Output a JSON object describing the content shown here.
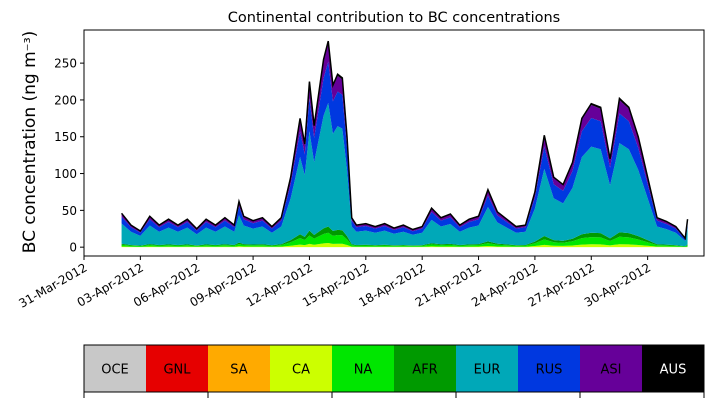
{
  "chart_data": {
    "type": "area",
    "stacked": true,
    "title": "Continental contribution to BC concentrations",
    "ylabel": "BC concentration (ng m⁻³)",
    "xlabel": "",
    "x_start": "2012-04-02",
    "x_end": "2012-05-02",
    "xlim": [
      "2012-03-31",
      "2012-05-03"
    ],
    "ylim": [
      -12,
      295
    ],
    "y_ticks": [
      0,
      50,
      100,
      150,
      200,
      250
    ],
    "x_ticks": [
      "31-Mar-2012",
      "03-Apr-2012",
      "06-Apr-2012",
      "09-Apr-2012",
      "12-Apr-2012",
      "15-Apr-2012",
      "18-Apr-2012",
      "21-Apr-2012",
      "24-Apr-2012",
      "27-Apr-2012",
      "30-Apr-2012"
    ],
    "total_series": {
      "name": "Total",
      "color": "#000000",
      "points": [
        [
          "2012-04-02T00",
          46
        ],
        [
          "2012-04-02T12",
          30
        ],
        [
          "2012-04-03T00",
          22
        ],
        [
          "2012-04-03T12",
          42
        ],
        [
          "2012-04-04T00",
          30
        ],
        [
          "2012-04-04T12",
          38
        ],
        [
          "2012-04-05T00",
          30
        ],
        [
          "2012-04-05T12",
          38
        ],
        [
          "2012-04-06T00",
          25
        ],
        [
          "2012-04-06T12",
          38
        ],
        [
          "2012-04-07T00",
          30
        ],
        [
          "2012-04-07T12",
          40
        ],
        [
          "2012-04-08T00",
          30
        ],
        [
          "2012-04-08T06",
          62
        ],
        [
          "2012-04-08T12",
          42
        ],
        [
          "2012-04-09T00",
          36
        ],
        [
          "2012-04-09T12",
          40
        ],
        [
          "2012-04-10T00",
          28
        ],
        [
          "2012-04-10T12",
          40
        ],
        [
          "2012-04-11T00",
          95
        ],
        [
          "2012-04-11T12",
          175
        ],
        [
          "2012-04-11T18",
          140
        ],
        [
          "2012-04-12T00",
          225
        ],
        [
          "2012-04-12T06",
          165
        ],
        [
          "2012-04-12T18",
          255
        ],
        [
          "2012-04-13T00",
          280
        ],
        [
          "2012-04-13T06",
          220
        ],
        [
          "2012-04-13T12",
          235
        ],
        [
          "2012-04-13T18",
          230
        ],
        [
          "2012-04-14T00",
          150
        ],
        [
          "2012-04-14T06",
          40
        ],
        [
          "2012-04-14T12",
          30
        ],
        [
          "2012-04-15T00",
          32
        ],
        [
          "2012-04-15T12",
          28
        ],
        [
          "2012-04-16T00",
          32
        ],
        [
          "2012-04-16T12",
          26
        ],
        [
          "2012-04-17T00",
          30
        ],
        [
          "2012-04-17T12",
          24
        ],
        [
          "2012-04-18T00",
          28
        ],
        [
          "2012-04-18T12",
          53
        ],
        [
          "2012-04-19T00",
          40
        ],
        [
          "2012-04-19T12",
          45
        ],
        [
          "2012-04-20T00",
          30
        ],
        [
          "2012-04-20T12",
          38
        ],
        [
          "2012-04-21T00",
          42
        ],
        [
          "2012-04-21T12",
          78
        ],
        [
          "2012-04-22T00",
          48
        ],
        [
          "2012-04-22T12",
          38
        ],
        [
          "2012-04-23T00",
          28
        ],
        [
          "2012-04-23T12",
          30
        ],
        [
          "2012-04-24T00",
          75
        ],
        [
          "2012-04-24T12",
          152
        ],
        [
          "2012-04-25T00",
          95
        ],
        [
          "2012-04-25T12",
          85
        ],
        [
          "2012-04-26T00",
          115
        ],
        [
          "2012-04-26T12",
          175
        ],
        [
          "2012-04-27T00",
          195
        ],
        [
          "2012-04-27T12",
          190
        ],
        [
          "2012-04-28T00",
          120
        ],
        [
          "2012-04-28T06",
          160
        ],
        [
          "2012-04-28T12",
          202
        ],
        [
          "2012-04-29T00",
          190
        ],
        [
          "2012-04-29T12",
          150
        ],
        [
          "2012-04-30T00",
          95
        ],
        [
          "2012-04-30T12",
          40
        ],
        [
          "2012-05-01T00",
          35
        ],
        [
          "2012-05-01T12",
          28
        ],
        [
          "2012-05-02T00",
          12
        ],
        [
          "2012-05-02T03",
          38
        ]
      ]
    },
    "series": [
      {
        "name": "OCE",
        "color": "#c8c8c8",
        "share": 0.0
      },
      {
        "name": "GNL",
        "color": "#e60000",
        "share": 0.0
      },
      {
        "name": "SA",
        "color": "#ffaa00",
        "share": 0.0
      },
      {
        "name": "CA",
        "color": "#ccff00",
        "share": 0.02
      },
      {
        "name": "NA",
        "color": "#00e600",
        "share": 0.05
      },
      {
        "name": "AFR",
        "color": "#009a00",
        "share": 0.03
      },
      {
        "name": "EUR",
        "color": "#00a8b8",
        "share": 0.6
      },
      {
        "name": "RUS",
        "color": "#0038e0",
        "share": 0.2
      },
      {
        "name": "ASI",
        "color": "#660099",
        "share": 0.09
      },
      {
        "name": "AUS",
        "color": "#000000",
        "share": 0.01
      }
    ],
    "legend": {
      "placement": "bottom",
      "items": [
        {
          "label": "OCE",
          "color": "#c8c8c8",
          "text_color": "#000000"
        },
        {
          "label": "GNL",
          "color": "#e60000",
          "text_color": "#000000"
        },
        {
          "label": "SA",
          "color": "#ffaa00",
          "text_color": "#000000"
        },
        {
          "label": "CA",
          "color": "#ccff00",
          "text_color": "#000000"
        },
        {
          "label": "NA",
          "color": "#00e600",
          "text_color": "#000000"
        },
        {
          "label": "AFR",
          "color": "#009a00",
          "text_color": "#000000"
        },
        {
          "label": "EUR",
          "color": "#00a8b8",
          "text_color": "#000000"
        },
        {
          "label": "RUS",
          "color": "#0038e0",
          "text_color": "#000000"
        },
        {
          "label": "ASI",
          "color": "#660099",
          "text_color": "#000000"
        },
        {
          "label": "AUS",
          "color": "#000000",
          "text_color": "#ffffff"
        }
      ]
    },
    "grid": false
  }
}
